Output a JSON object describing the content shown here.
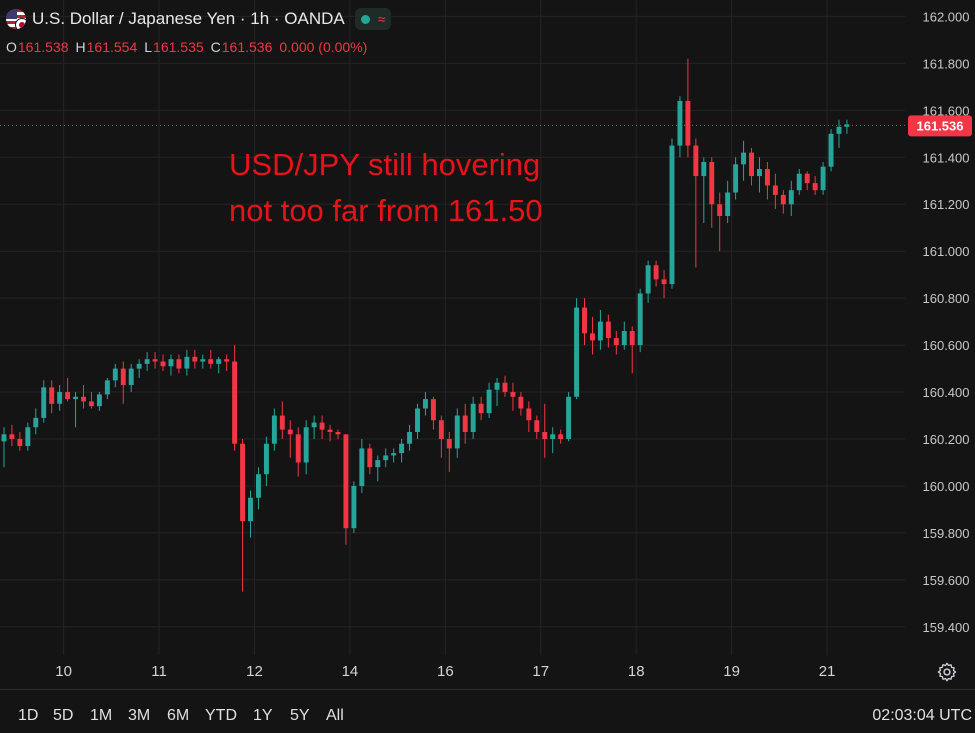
{
  "header": {
    "title": "U.S. Dollar / Japanese Yen · 1h · OANDA",
    "icons": [
      "usd-jpy-flag-icon",
      "market-status-dot-icon",
      "wave-icon"
    ],
    "ohlc": [
      {
        "label": "O",
        "value": "161.538"
      },
      {
        "label": "H",
        "value": "161.554"
      },
      {
        "label": "L",
        "value": "161.535"
      },
      {
        "label": "C",
        "value": "161.536"
      },
      {
        "label": "",
        "value": "0.000 (0.00%)"
      }
    ]
  },
  "annotation": {
    "line1": "USD/JPY still hovering",
    "line2": "not too far from 161.50",
    "color": "#e8121b"
  },
  "price_tag": "161.536",
  "colors": {
    "up": "#26a69a",
    "down": "#f23645",
    "background": "#141414",
    "grid": "#242424"
  },
  "time_ranges": [
    "1D",
    "5D",
    "1M",
    "3M",
    "6M",
    "YTD",
    "1Y",
    "5Y",
    "All"
  ],
  "clock": "02:03:04 UTC",
  "settings_icon": "gear-icon",
  "chart_data": {
    "type": "candlestick",
    "title": "U.S. Dollar / Japanese Yen · 1h · OANDA",
    "interval": "1h",
    "y_axis": {
      "ticks": [
        "162.000",
        "161.800",
        "161.600",
        "161.400",
        "161.200",
        "161.000",
        "160.800",
        "160.600",
        "160.400",
        "160.200",
        "160.000",
        "159.800",
        "159.600",
        "159.400"
      ],
      "range": [
        159.28,
        162.07
      ],
      "position": "right"
    },
    "x_axis": {
      "ticks": [
        "10",
        "11",
        "12",
        "14",
        "16",
        "17",
        "18",
        "19",
        "21"
      ],
      "range": [
        0,
        113.8
      ]
    },
    "tick_positions": [
      8,
      20,
      32,
      44,
      56,
      68,
      80,
      92,
      104
    ],
    "last_price": 161.536,
    "grid": true,
    "series": [
      {
        "values": [
          [
            160.19,
            160.25,
            160.08,
            160.22
          ],
          [
            160.22,
            160.26,
            160.17,
            160.2
          ],
          [
            160.2,
            160.23,
            160.15,
            160.17
          ],
          [
            160.17,
            160.27,
            160.15,
            160.25
          ],
          [
            160.25,
            160.33,
            160.22,
            160.29
          ],
          [
            160.29,
            160.45,
            160.27,
            160.42
          ],
          [
            160.42,
            160.45,
            160.31,
            160.35
          ],
          [
            160.35,
            160.43,
            160.32,
            160.4
          ],
          [
            160.4,
            160.46,
            160.36,
            160.37
          ],
          [
            160.37,
            160.4,
            160.25,
            160.38
          ],
          [
            160.38,
            160.43,
            160.33,
            160.36
          ],
          [
            160.36,
            160.4,
            160.33,
            160.34
          ],
          [
            160.34,
            160.4,
            160.32,
            160.39
          ],
          [
            160.39,
            160.46,
            160.37,
            160.45
          ],
          [
            160.45,
            160.52,
            160.42,
            160.5
          ],
          [
            160.5,
            160.53,
            160.35,
            160.43
          ],
          [
            160.43,
            160.52,
            160.4,
            160.5
          ],
          [
            160.5,
            160.54,
            160.46,
            160.52
          ],
          [
            160.52,
            160.57,
            160.49,
            160.54
          ],
          [
            160.54,
            160.57,
            160.5,
            160.53
          ],
          [
            160.53,
            160.56,
            160.49,
            160.51
          ],
          [
            160.51,
            160.56,
            160.47,
            160.54
          ],
          [
            160.54,
            160.56,
            160.48,
            160.5
          ],
          [
            160.5,
            160.58,
            160.47,
            160.55
          ],
          [
            160.55,
            160.58,
            160.5,
            160.53
          ],
          [
            160.53,
            160.56,
            160.5,
            160.54
          ],
          [
            160.54,
            160.58,
            160.5,
            160.52
          ],
          [
            160.52,
            160.55,
            160.48,
            160.54
          ],
          [
            160.54,
            160.56,
            160.49,
            160.53
          ],
          [
            160.53,
            160.6,
            160.15,
            160.18
          ],
          [
            160.18,
            160.2,
            159.55,
            159.85
          ],
          [
            159.85,
            159.98,
            159.78,
            159.95
          ],
          [
            159.95,
            160.08,
            159.9,
            160.05
          ],
          [
            160.05,
            160.21,
            160.0,
            160.18
          ],
          [
            160.18,
            160.33,
            160.15,
            160.3
          ],
          [
            160.3,
            160.36,
            160.2,
            160.24
          ],
          [
            160.24,
            160.28,
            160.12,
            160.22
          ],
          [
            160.22,
            160.25,
            160.04,
            160.1
          ],
          [
            160.1,
            160.28,
            160.05,
            160.25
          ],
          [
            160.25,
            160.3,
            160.2,
            160.27
          ],
          [
            160.27,
            160.3,
            160.2,
            160.24
          ],
          [
            160.24,
            160.26,
            160.19,
            160.23
          ],
          [
            160.23,
            160.24,
            160.2,
            160.22
          ],
          [
            160.22,
            160.22,
            159.75,
            159.82
          ],
          [
            159.82,
            160.02,
            159.8,
            160.0
          ],
          [
            160.0,
            160.2,
            159.97,
            160.16
          ],
          [
            160.16,
            160.18,
            160.05,
            160.08
          ],
          [
            160.08,
            160.13,
            160.02,
            160.11
          ],
          [
            160.11,
            160.16,
            160.08,
            160.13
          ],
          [
            160.13,
            160.16,
            160.1,
            160.14
          ],
          [
            160.14,
            160.2,
            160.1,
            160.18
          ],
          [
            160.18,
            160.26,
            160.15,
            160.23
          ],
          [
            160.23,
            160.35,
            160.2,
            160.33
          ],
          [
            160.33,
            160.4,
            160.3,
            160.37
          ],
          [
            160.37,
            160.38,
            160.24,
            160.28
          ],
          [
            160.28,
            160.3,
            160.12,
            160.2
          ],
          [
            160.2,
            160.23,
            160.06,
            160.16
          ],
          [
            160.16,
            160.33,
            160.12,
            160.3
          ],
          [
            160.3,
            160.35,
            160.18,
            160.23
          ],
          [
            160.23,
            160.38,
            160.2,
            160.35
          ],
          [
            160.35,
            160.38,
            160.28,
            160.31
          ],
          [
            160.31,
            160.44,
            160.29,
            160.41
          ],
          [
            160.41,
            160.46,
            160.34,
            160.44
          ],
          [
            160.44,
            160.47,
            160.38,
            160.4
          ],
          [
            160.4,
            160.44,
            160.32,
            160.38
          ],
          [
            160.38,
            160.4,
            160.3,
            160.33
          ],
          [
            160.33,
            160.36,
            160.23,
            160.28
          ],
          [
            160.28,
            160.3,
            160.2,
            160.23
          ],
          [
            160.23,
            160.35,
            160.12,
            160.2
          ],
          [
            160.2,
            160.25,
            160.14,
            160.22
          ],
          [
            160.22,
            160.24,
            160.18,
            160.2
          ],
          [
            160.2,
            160.4,
            160.19,
            160.38
          ],
          [
            160.38,
            160.8,
            160.37,
            160.76
          ],
          [
            160.76,
            160.8,
            160.6,
            160.65
          ],
          [
            160.65,
            160.72,
            160.56,
            160.62
          ],
          [
            160.62,
            160.75,
            160.58,
            160.7
          ],
          [
            160.7,
            160.73,
            160.59,
            160.63
          ],
          [
            160.63,
            160.66,
            160.56,
            160.6
          ],
          [
            160.6,
            160.7,
            160.58,
            160.66
          ],
          [
            160.66,
            160.68,
            160.48,
            160.6
          ],
          [
            160.6,
            160.84,
            160.57,
            160.82
          ],
          [
            160.82,
            160.96,
            160.78,
            160.94
          ],
          [
            160.94,
            160.96,
            160.85,
            160.88
          ],
          [
            160.88,
            160.92,
            160.8,
            160.86
          ],
          [
            160.86,
            161.48,
            160.84,
            161.45
          ],
          [
            161.45,
            161.66,
            161.4,
            161.64
          ],
          [
            161.64,
            161.82,
            161.4,
            161.45
          ],
          [
            161.45,
            161.48,
            160.93,
            161.32
          ],
          [
            161.32,
            161.4,
            161.12,
            161.38
          ],
          [
            161.38,
            161.4,
            161.1,
            161.2
          ],
          [
            161.2,
            161.25,
            161.0,
            161.15
          ],
          [
            161.15,
            161.3,
            161.12,
            161.25
          ],
          [
            161.25,
            161.4,
            161.22,
            161.37
          ],
          [
            161.37,
            161.47,
            161.3,
            161.42
          ],
          [
            161.42,
            161.44,
            161.28,
            161.32
          ],
          [
            161.32,
            161.4,
            161.25,
            161.35
          ],
          [
            161.35,
            161.38,
            161.22,
            161.28
          ],
          [
            161.28,
            161.33,
            161.18,
            161.24
          ],
          [
            161.24,
            161.26,
            161.16,
            161.2
          ],
          [
            161.2,
            161.3,
            161.15,
            161.26
          ],
          [
            161.26,
            161.35,
            161.24,
            161.33
          ],
          [
            161.33,
            161.34,
            161.26,
            161.29
          ],
          [
            161.29,
            161.32,
            161.24,
            161.26
          ],
          [
            161.26,
            161.38,
            161.24,
            161.36
          ],
          [
            161.36,
            161.52,
            161.34,
            161.5
          ],
          [
            161.5,
            161.56,
            161.44,
            161.53
          ],
          [
            161.53,
            161.56,
            161.5,
            161.54
          ]
        ]
      }
    ]
  }
}
